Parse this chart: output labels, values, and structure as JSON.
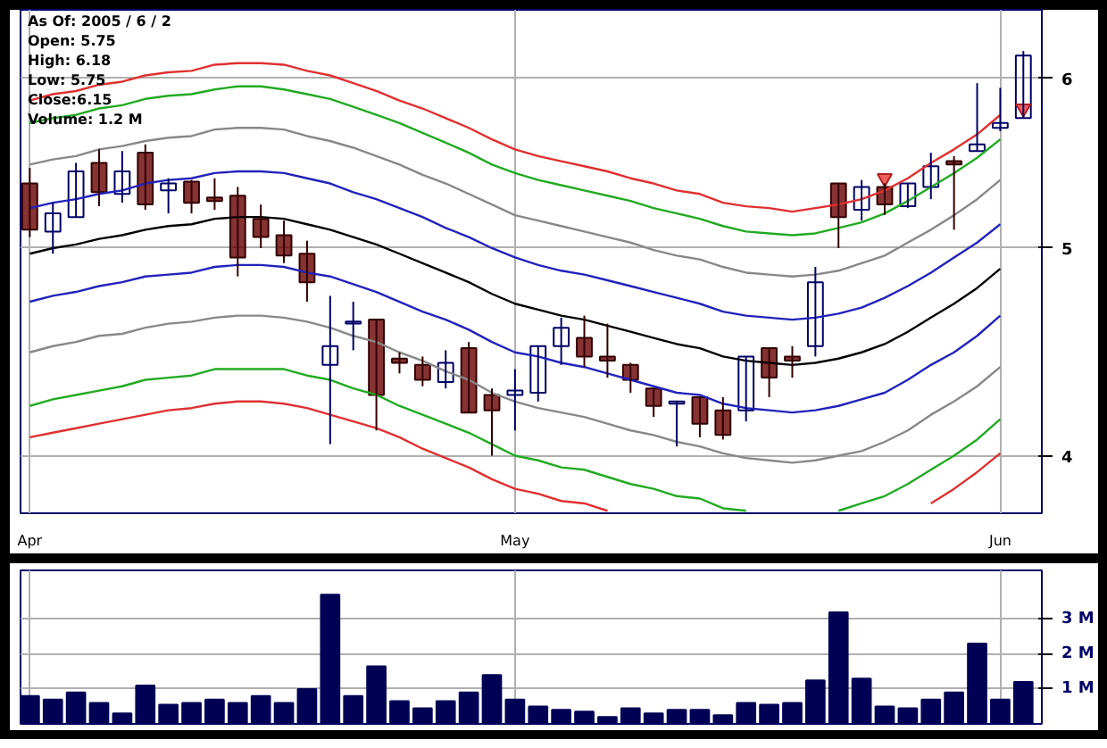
{
  "chart_data": [
    {
      "type": "candlestick",
      "categories": [
        "Apr",
        null,
        null,
        null,
        null,
        null,
        null,
        null,
        null,
        null,
        null,
        null,
        null,
        null,
        null,
        null,
        null,
        null,
        null,
        null,
        null,
        "May",
        null,
        null,
        null,
        null,
        null,
        null,
        null,
        null,
        null,
        null,
        null,
        null,
        null,
        null,
        null,
        null,
        null,
        null,
        null,
        null,
        "Jun",
        null
      ],
      "ohlc": [
        [
          5.36,
          5.45,
          5.06,
          5.1
        ],
        [
          5.09,
          5.25,
          4.97,
          5.19
        ],
        [
          5.17,
          5.48,
          5.17,
          5.43
        ],
        [
          5.48,
          5.56,
          5.23,
          5.31
        ],
        [
          5.3,
          5.55,
          5.25,
          5.43
        ],
        [
          5.54,
          5.59,
          5.21,
          5.24
        ],
        [
          5.32,
          5.39,
          5.19,
          5.36
        ],
        [
          5.37,
          5.38,
          5.19,
          5.25
        ],
        [
          5.28,
          5.39,
          5.21,
          5.26
        ],
        [
          5.29,
          5.34,
          4.85,
          4.95
        ],
        [
          5.16,
          5.24,
          5.0,
          5.06
        ],
        [
          5.07,
          5.15,
          4.92,
          4.96
        ],
        [
          4.97,
          5.04,
          4.72,
          4.82
        ],
        [
          4.41,
          4.75,
          4.05,
          4.5
        ],
        [
          4.61,
          4.72,
          4.48,
          4.62
        ],
        [
          4.63,
          4.63,
          4.11,
          4.27
        ],
        [
          4.44,
          4.47,
          4.37,
          4.42
        ],
        [
          4.41,
          4.45,
          4.31,
          4.34
        ],
        [
          4.33,
          4.48,
          4.3,
          4.42
        ],
        [
          4.49,
          4.52,
          4.19,
          4.19
        ],
        [
          4.27,
          4.3,
          4.0,
          4.2
        ],
        [
          4.27,
          4.39,
          4.11,
          4.29
        ],
        [
          4.28,
          4.5,
          4.24,
          4.5
        ],
        [
          4.5,
          4.64,
          4.41,
          4.59
        ],
        [
          4.54,
          4.65,
          4.4,
          4.45
        ],
        [
          4.45,
          4.61,
          4.35,
          4.43
        ],
        [
          4.41,
          4.42,
          4.28,
          4.34
        ],
        [
          4.3,
          4.3,
          4.17,
          4.22
        ],
        [
          4.23,
          4.24,
          4.04,
          4.24
        ],
        [
          4.26,
          4.26,
          4.08,
          4.14
        ],
        [
          4.2,
          4.26,
          4.07,
          4.09
        ],
        [
          4.2,
          4.45,
          4.15,
          4.45
        ],
        [
          4.49,
          4.49,
          4.26,
          4.35
        ],
        [
          4.45,
          4.5,
          4.35,
          4.43
        ],
        [
          4.5,
          4.9,
          4.45,
          4.82
        ],
        [
          5.36,
          5.36,
          5.0,
          5.17
        ],
        [
          5.21,
          5.38,
          5.15,
          5.34
        ],
        [
          5.34,
          5.36,
          5.18,
          5.24
        ],
        [
          5.23,
          5.36,
          5.22,
          5.36
        ],
        [
          5.34,
          5.54,
          5.27,
          5.46
        ],
        [
          5.49,
          5.52,
          5.1,
          5.47
        ],
        [
          5.55,
          5.97,
          5.55,
          5.59
        ],
        [
          5.69,
          5.94,
          5.67,
          5.72
        ],
        [
          5.75,
          6.18,
          5.75,
          6.15
        ]
      ],
      "series": [
        {
          "type": "line",
          "color": "#e03030",
          "values": [
            5.86,
            5.9,
            5.92,
            5.96,
            5.98,
            6.02,
            6.04,
            6.05,
            6.09,
            6.1,
            6.1,
            6.09,
            6.05,
            6.02,
            5.97,
            5.92,
            5.86,
            5.81,
            5.75,
            5.69,
            5.62,
            5.56,
            5.52,
            5.49,
            5.46,
            5.43,
            5.39,
            5.36,
            5.32,
            5.3,
            5.25,
            5.23,
            5.22,
            5.2,
            5.22,
            5.24,
            5.27,
            5.32,
            5.39,
            5.48,
            5.56,
            5.65,
            5.77,
            null
          ]
        },
        {
          "type": "line",
          "color": "#22aa22",
          "values": [
            5.72,
            5.75,
            5.77,
            5.81,
            5.83,
            5.87,
            5.89,
            5.9,
            5.93,
            5.95,
            5.95,
            5.93,
            5.9,
            5.87,
            5.82,
            5.77,
            5.72,
            5.66,
            5.6,
            5.54,
            5.47,
            5.42,
            5.38,
            5.35,
            5.32,
            5.29,
            5.26,
            5.22,
            5.19,
            5.16,
            5.12,
            5.09,
            5.08,
            5.07,
            5.08,
            5.11,
            5.14,
            5.19,
            5.26,
            5.34,
            5.42,
            5.51,
            5.62,
            null
          ]
        },
        {
          "type": "line",
          "color": "#888888",
          "values": [
            5.47,
            5.5,
            5.52,
            5.56,
            5.58,
            5.61,
            5.63,
            5.64,
            5.68,
            5.69,
            5.69,
            5.68,
            5.64,
            5.61,
            5.57,
            5.52,
            5.47,
            5.41,
            5.36,
            5.3,
            5.24,
            5.18,
            5.15,
            5.12,
            5.09,
            5.06,
            5.03,
            4.99,
            4.96,
            4.94,
            4.9,
            4.87,
            4.86,
            4.85,
            4.86,
            4.88,
            4.92,
            4.96,
            5.03,
            5.1,
            5.18,
            5.27,
            5.38,
            null
          ]
        },
        {
          "type": "line",
          "color": "#2222bb",
          "values": [
            5.22,
            5.25,
            5.27,
            5.3,
            5.32,
            5.36,
            5.38,
            5.39,
            5.42,
            5.43,
            5.43,
            5.42,
            5.39,
            5.36,
            5.31,
            5.27,
            5.22,
            5.17,
            5.11,
            5.06,
            5.0,
            4.95,
            4.91,
            4.88,
            4.86,
            4.83,
            4.8,
            4.77,
            4.74,
            4.71,
            4.67,
            4.65,
            4.64,
            4.63,
            4.64,
            4.66,
            4.69,
            4.74,
            4.8,
            4.87,
            4.95,
            5.03,
            5.13,
            null
          ]
        },
        {
          "type": "line",
          "color": "#000000",
          "values": [
            4.97,
            5.0,
            5.02,
            5.05,
            5.07,
            5.1,
            5.12,
            5.13,
            5.16,
            5.17,
            5.17,
            5.16,
            5.13,
            5.1,
            5.06,
            5.02,
            4.97,
            4.92,
            4.87,
            4.82,
            4.76,
            4.71,
            4.68,
            4.65,
            4.63,
            4.6,
            4.57,
            4.54,
            4.51,
            4.49,
            4.45,
            4.43,
            4.42,
            4.41,
            4.42,
            4.44,
            4.47,
            4.51,
            4.57,
            4.64,
            4.71,
            4.79,
            4.89,
            null
          ]
        },
        {
          "type": "line",
          "color": "#2222bb",
          "values": [
            4.72,
            4.75,
            4.77,
            4.8,
            4.82,
            4.85,
            4.86,
            4.87,
            4.9,
            4.91,
            4.91,
            4.9,
            4.87,
            4.85,
            4.81,
            4.77,
            4.72,
            4.67,
            4.63,
            4.58,
            4.52,
            4.47,
            4.45,
            4.42,
            4.4,
            4.37,
            4.34,
            4.31,
            4.28,
            4.27,
            4.23,
            4.21,
            4.2,
            4.19,
            4.2,
            4.22,
            4.25,
            4.28,
            4.34,
            4.41,
            4.47,
            4.55,
            4.65,
            null
          ]
        },
        {
          "type": "line",
          "color": "#888888",
          "values": [
            4.47,
            4.5,
            4.52,
            4.55,
            4.56,
            4.59,
            4.61,
            4.62,
            4.64,
            4.65,
            4.65,
            4.64,
            4.62,
            4.59,
            4.55,
            4.52,
            4.47,
            4.43,
            4.38,
            4.34,
            4.28,
            4.24,
            4.21,
            4.19,
            4.17,
            4.14,
            4.11,
            4.09,
            4.06,
            4.04,
            4.01,
            3.99,
            3.98,
            3.97,
            3.98,
            4.0,
            4.02,
            4.06,
            4.11,
            4.18,
            4.24,
            4.31,
            4.4,
            null
          ]
        },
        {
          "type": "line",
          "color": "#22aa22",
          "values": [
            4.22,
            4.25,
            4.27,
            4.29,
            4.31,
            4.34,
            4.35,
            4.36,
            4.39,
            4.39,
            4.39,
            4.39,
            4.36,
            4.34,
            4.3,
            4.27,
            4.22,
            4.18,
            4.14,
            4.1,
            4.05,
            4.0,
            3.98,
            3.95,
            3.94,
            3.91,
            3.88,
            3.86,
            3.83,
            3.82,
            3.78,
            3.77,
            null,
            null,
            null,
            3.77,
            3.8,
            3.83,
            3.88,
            3.94,
            4.0,
            4.07,
            4.16,
            null
          ]
        },
        {
          "type": "line",
          "color": "#e03030",
          "values": [
            4.08,
            4.1,
            4.12,
            4.14,
            4.16,
            4.18,
            4.2,
            4.21,
            4.23,
            4.24,
            4.24,
            4.23,
            4.21,
            4.18,
            4.15,
            4.12,
            4.08,
            4.03,
            3.99,
            3.95,
            3.9,
            3.86,
            3.84,
            3.81,
            3.8,
            3.77,
            null,
            null,
            null,
            null,
            null,
            null,
            null,
            null,
            null,
            null,
            null,
            null,
            null,
            3.8,
            3.86,
            3.93,
            4.01,
            null
          ]
        },
        {
          "type": "scatter",
          "marker": "triangle",
          "color": "#f06060",
          "values": [
            null,
            null,
            null,
            null,
            null,
            null,
            null,
            null,
            null,
            null,
            null,
            null,
            null,
            null,
            null,
            null,
            null,
            null,
            null,
            null,
            null,
            null,
            null,
            null,
            null,
            null,
            null,
            null,
            null,
            null,
            null,
            null,
            null,
            null,
            null,
            null,
            null,
            5.39,
            null,
            null,
            null,
            null,
            null,
            5.81
          ]
        }
      ],
      "ylim": [
        3.76,
        6.46
      ],
      "yticks": [
        4,
        5,
        6
      ],
      "log": true,
      "grid": true,
      "annotations": [
        "As Of: 2005 / 6 / 2",
        "Open: 5.75",
        "High: 6.18",
        "Low: 5.75",
        "Close:6.15",
        "Volume: 1.2 M"
      ]
    },
    {
      "type": "bar",
      "color": "#000055",
      "categories": [
        null,
        null,
        null,
        null,
        null,
        null,
        null,
        null,
        null,
        null,
        null,
        null,
        null,
        null,
        null,
        null,
        null,
        null,
        null,
        null,
        null,
        null,
        null,
        null,
        null,
        null,
        null,
        null,
        null,
        null,
        null,
        null,
        null,
        null,
        null,
        null,
        null,
        null,
        null,
        null,
        null,
        null,
        null,
        null
      ],
      "values": [
        0.8,
        0.7,
        0.9,
        0.6,
        0.3,
        1.1,
        0.55,
        0.6,
        0.7,
        0.6,
        0.8,
        0.6,
        1.0,
        3.7,
        0.8,
        1.65,
        0.65,
        0.45,
        0.65,
        0.9,
        1.4,
        0.7,
        0.5,
        0.4,
        0.35,
        0.2,
        0.45,
        0.3,
        0.4,
        0.4,
        0.25,
        0.6,
        0.55,
        0.6,
        1.25,
        3.2,
        1.3,
        0.5,
        0.45,
        0.7,
        0.9,
        2.3,
        0.7,
        1.2
      ],
      "ylim": [
        0,
        4.4
      ],
      "yticks": [
        {
          "value": 1,
          "label": "1 M"
        },
        {
          "value": 2,
          "label": "2 M"
        },
        {
          "value": 3,
          "label": "3 M"
        }
      ],
      "grid": true,
      "tick_labels": "y"
    }
  ]
}
